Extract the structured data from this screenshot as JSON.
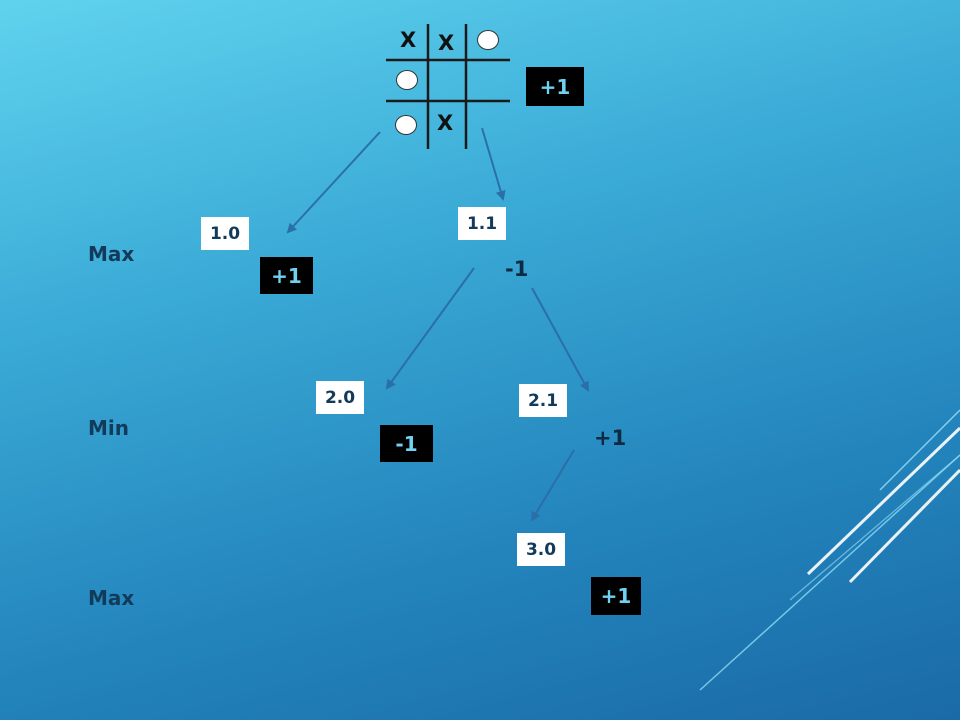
{
  "levels": {
    "max1": "Max",
    "min": "Min",
    "max2": "Max"
  },
  "board": {
    "cells": [
      [
        "X",
        "X",
        "O"
      ],
      [
        "O",
        "",
        ""
      ],
      [
        "O",
        "X",
        ""
      ]
    ]
  },
  "nodes": {
    "root_score": "+1",
    "n10": {
      "label": "1.0",
      "score": "+1"
    },
    "n11": {
      "label": "1.1",
      "score": "-1"
    },
    "n20": {
      "label": "2.0",
      "score": "-1"
    },
    "n21": {
      "label": "2.1",
      "score": "+1"
    },
    "n30": {
      "label": "3.0",
      "score": "+1"
    }
  },
  "colors": {
    "arrow": "#2a6fa8",
    "score_text": "#6fd2f0",
    "score_bg": "#000000"
  }
}
